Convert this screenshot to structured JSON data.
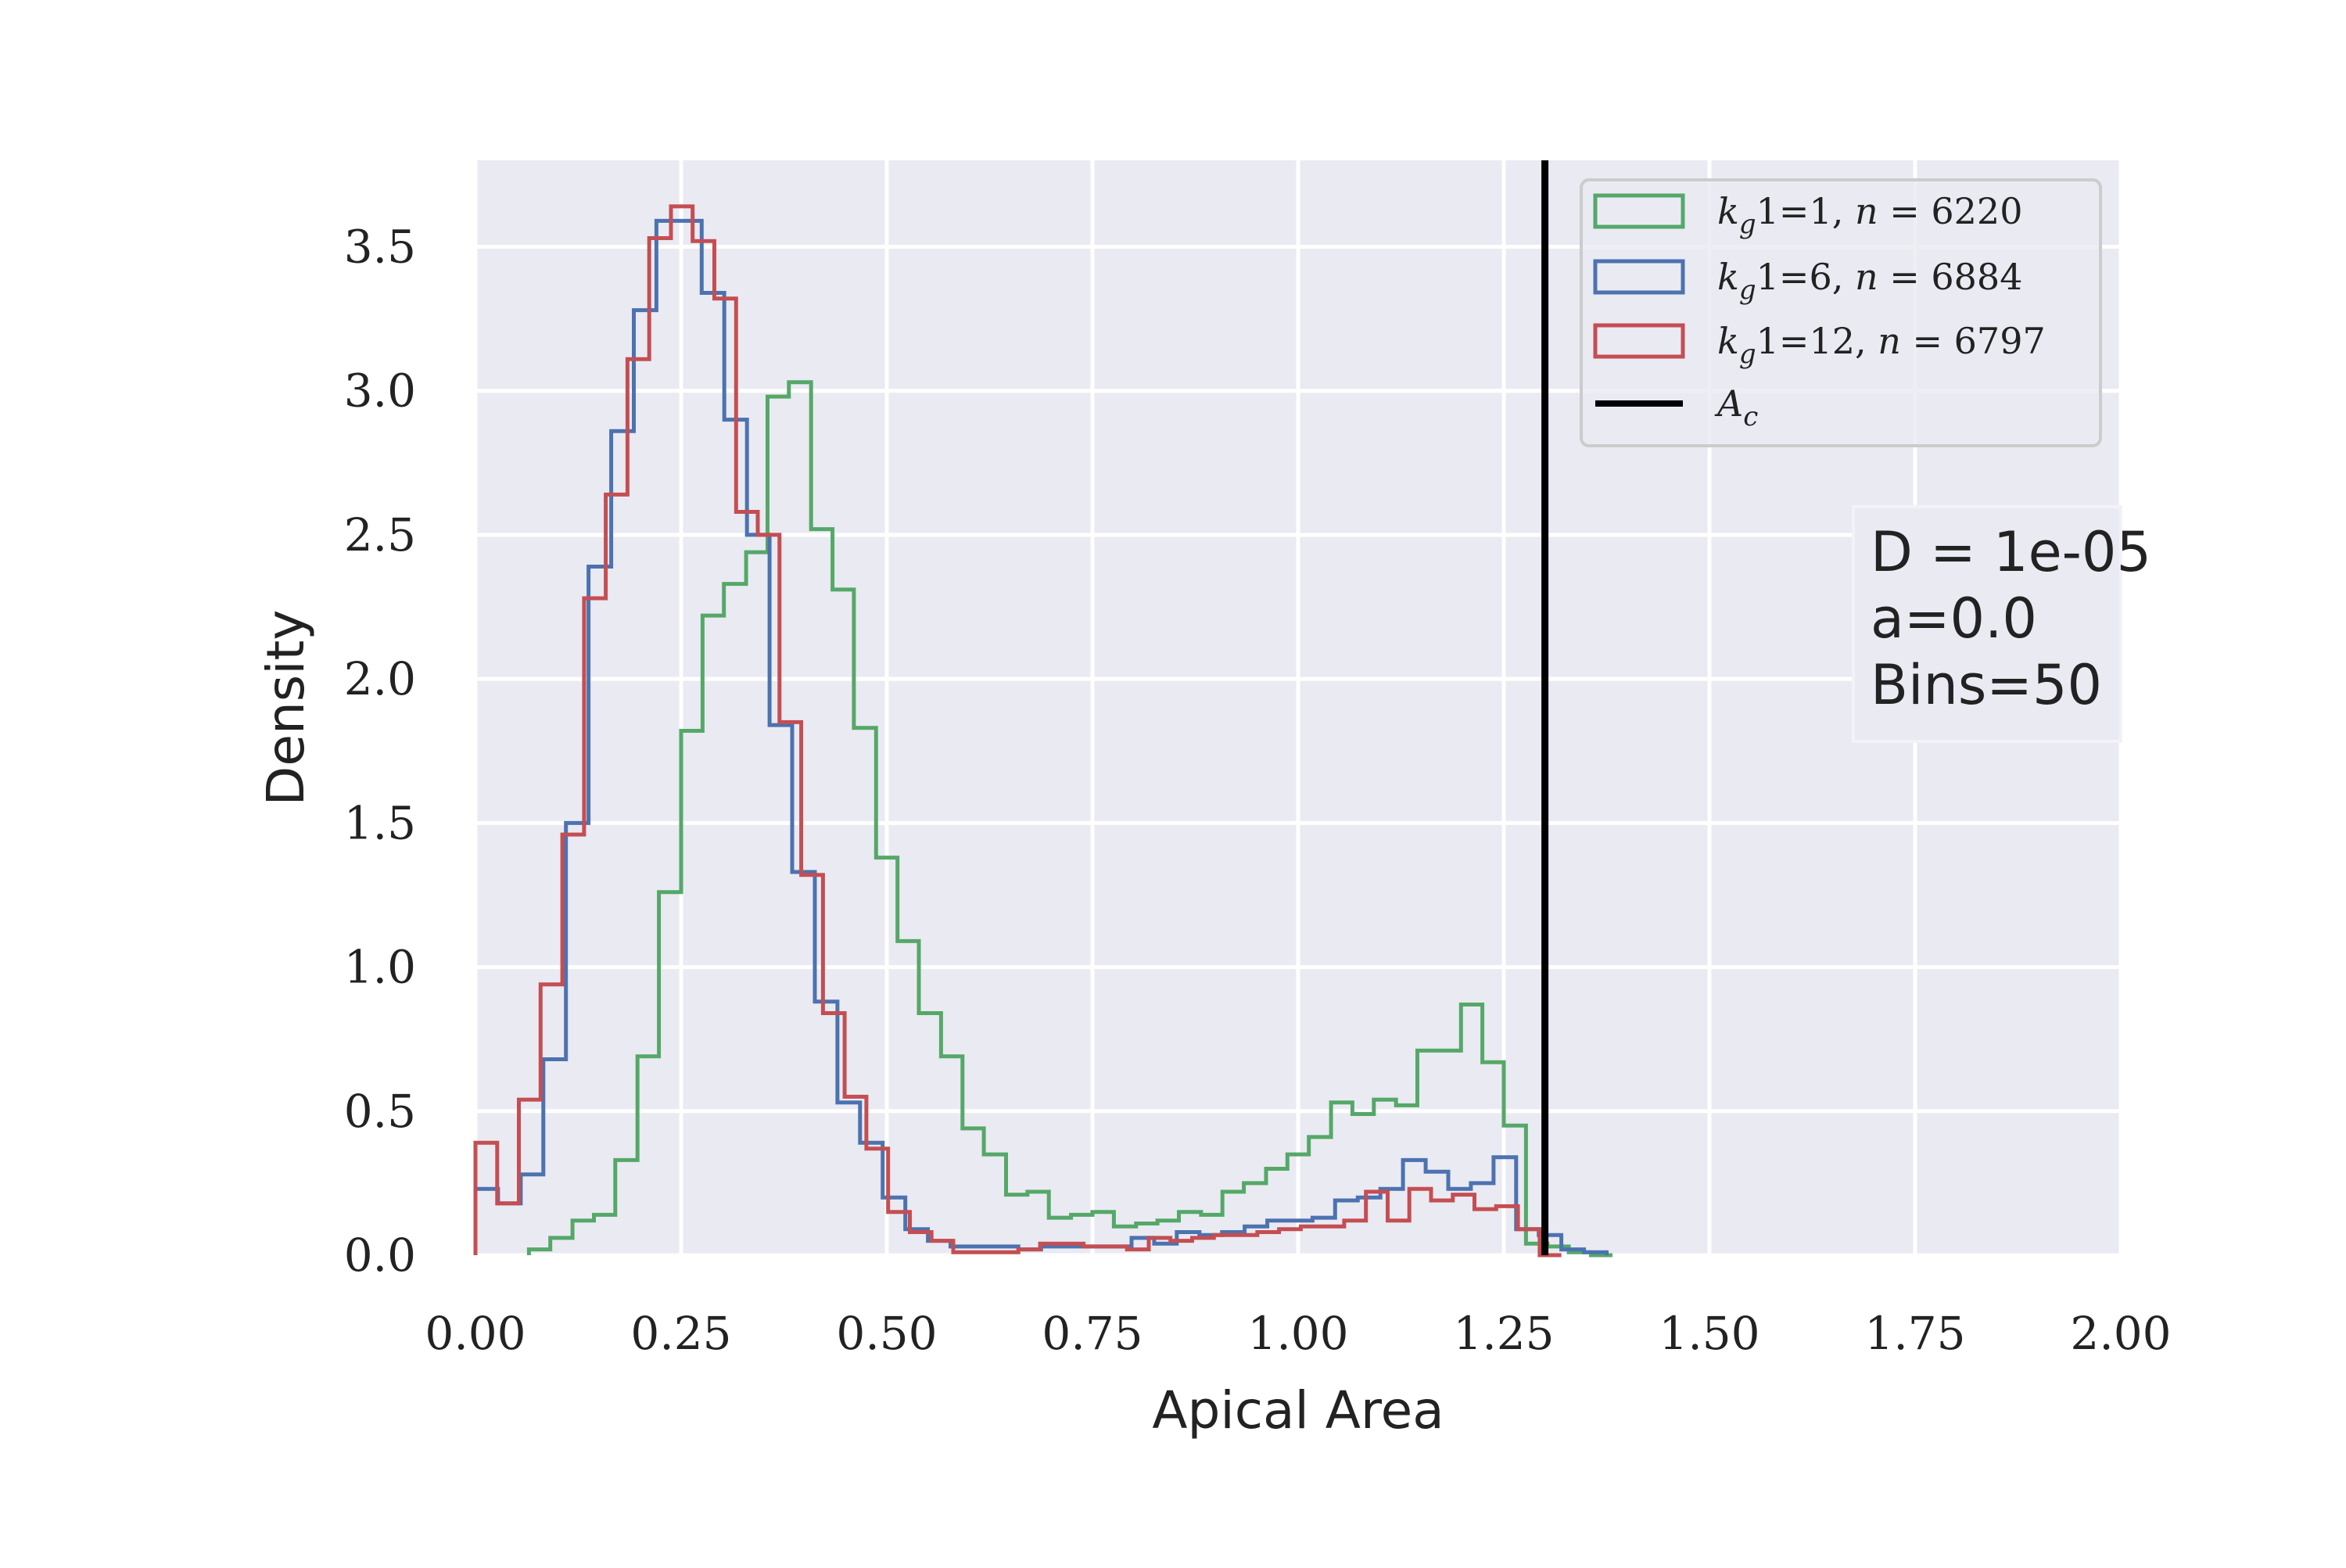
{
  "chart_data": {
    "type": "histogram",
    "xlabel": "Apical Area",
    "ylabel": "Density",
    "xlim": [
      0,
      2
    ],
    "ylim": [
      0,
      3.8
    ],
    "xticks": [
      "0.00",
      "0.25",
      "0.50",
      "0.75",
      "1.00",
      "1.25",
      "1.50",
      "1.75",
      "2.00"
    ],
    "xtick_values": [
      0,
      0.25,
      0.5,
      0.75,
      1.0,
      1.25,
      1.5,
      1.75,
      2.0
    ],
    "yticks": [
      "0.0",
      "0.5",
      "1.0",
      "1.5",
      "2.0",
      "2.5",
      "3.0",
      "3.5"
    ],
    "ytick_values": [
      0,
      0.5,
      1.0,
      1.5,
      2.0,
      2.5,
      3.0,
      3.5
    ],
    "grid": true,
    "legend_position": "top-right",
    "vline": {
      "name": "A_c",
      "x": 1.3,
      "color": "#000000"
    },
    "annotation": [
      "D = 1e-05",
      "a=0.0",
      "Bins=50"
    ],
    "series": [
      {
        "name": "k_g1=1, n = 6220",
        "legend_parts": [
          "k",
          "g",
          "1=1, ",
          "n",
          " = 6220"
        ],
        "color": "#55a868",
        "edges": [
          0.065,
          0.091,
          0.118,
          0.144,
          0.17,
          0.197,
          0.223,
          0.25,
          0.276,
          0.302,
          0.329,
          0.355,
          0.381,
          0.408,
          0.434,
          0.46,
          0.487,
          0.513,
          0.539,
          0.566,
          0.592,
          0.618,
          0.645,
          0.671,
          0.697,
          0.724,
          0.75,
          0.776,
          0.803,
          0.829,
          0.855,
          0.882,
          0.908,
          0.934,
          0.961,
          0.987,
          1.013,
          1.04,
          1.066,
          1.092,
          1.119,
          1.145,
          1.171,
          1.198,
          1.224,
          1.25,
          1.277,
          1.303,
          1.329,
          1.356,
          1.382
        ],
        "values": [
          0.02,
          0.06,
          0.12,
          0.14,
          0.33,
          0.69,
          1.26,
          1.82,
          2.22,
          2.33,
          2.44,
          2.98,
          3.03,
          2.52,
          2.31,
          1.83,
          1.38,
          1.09,
          0.84,
          0.69,
          0.44,
          0.35,
          0.21,
          0.22,
          0.13,
          0.14,
          0.15,
          0.1,
          0.11,
          0.12,
          0.15,
          0.14,
          0.22,
          0.25,
          0.3,
          0.35,
          0.41,
          0.53,
          0.49,
          0.54,
          0.52,
          0.71,
          0.71,
          0.87,
          0.67,
          0.45,
          0.04,
          0.03,
          0.01,
          0.0
        ]
      },
      {
        "name": "k_g1=6, n = 6884",
        "legend_parts": [
          "k",
          "g",
          "1=6, ",
          "n",
          " = 6884"
        ],
        "color": "#4c72b0",
        "edges": [
          0.0,
          0.0275,
          0.055,
          0.0825,
          0.11,
          0.1375,
          0.165,
          0.1925,
          0.22,
          0.2475,
          0.275,
          0.3025,
          0.33,
          0.3575,
          0.385,
          0.4125,
          0.44,
          0.4675,
          0.495,
          0.5225,
          0.55,
          0.5775,
          0.605,
          0.6325,
          0.66,
          0.6875,
          0.715,
          0.7425,
          0.77,
          0.7975,
          0.825,
          0.8525,
          0.88,
          0.9075,
          0.935,
          0.9625,
          0.99,
          1.0175,
          1.045,
          1.0725,
          1.1,
          1.1275,
          1.155,
          1.1825,
          1.21,
          1.2375,
          1.265,
          1.2925,
          1.32,
          1.3475,
          1.375
        ],
        "values": [
          0.23,
          0.18,
          0.28,
          0.68,
          1.5,
          2.39,
          2.86,
          3.28,
          3.59,
          3.59,
          3.34,
          2.9,
          2.5,
          1.84,
          1.33,
          0.88,
          0.53,
          0.39,
          0.2,
          0.09,
          0.05,
          0.03,
          0.03,
          0.03,
          0.02,
          0.03,
          0.03,
          0.03,
          0.03,
          0.06,
          0.04,
          0.08,
          0.07,
          0.08,
          0.1,
          0.12,
          0.12,
          0.13,
          0.19,
          0.2,
          0.23,
          0.33,
          0.29,
          0.23,
          0.25,
          0.34,
          0.09,
          0.07,
          0.02,
          0.01
        ]
      },
      {
        "name": "k_g1=12, n = 6797",
        "legend_parts": [
          "k",
          "g",
          "1=12, ",
          "n",
          " = 6797"
        ],
        "color": "#c44e52",
        "edges": [
          0.0,
          0.0264,
          0.0528,
          0.0792,
          0.1056,
          0.132,
          0.1584,
          0.1848,
          0.2112,
          0.2376,
          0.264,
          0.2904,
          0.3168,
          0.3432,
          0.3696,
          0.396,
          0.4224,
          0.4488,
          0.4752,
          0.5016,
          0.528,
          0.5544,
          0.5808,
          0.6072,
          0.6336,
          0.66,
          0.6864,
          0.7128,
          0.7392,
          0.7656,
          0.792,
          0.8184,
          0.8448,
          0.8712,
          0.8976,
          0.924,
          0.9504,
          0.9768,
          1.0032,
          1.0296,
          1.056,
          1.0824,
          1.1088,
          1.1352,
          1.1616,
          1.188,
          1.2144,
          1.2408,
          1.2672,
          1.2936,
          1.32
        ],
        "values": [
          0.39,
          0.18,
          0.54,
          0.94,
          1.46,
          2.28,
          2.64,
          3.11,
          3.53,
          3.64,
          3.52,
          3.32,
          2.58,
          2.5,
          1.85,
          1.32,
          0.84,
          0.55,
          0.37,
          0.15,
          0.08,
          0.05,
          0.01,
          0.01,
          0.01,
          0.02,
          0.04,
          0.04,
          0.03,
          0.03,
          0.02,
          0.06,
          0.05,
          0.06,
          0.07,
          0.07,
          0.08,
          0.09,
          0.1,
          0.1,
          0.12,
          0.22,
          0.12,
          0.23,
          0.19,
          0.21,
          0.16,
          0.17,
          0.09,
          0.0
        ]
      }
    ]
  }
}
